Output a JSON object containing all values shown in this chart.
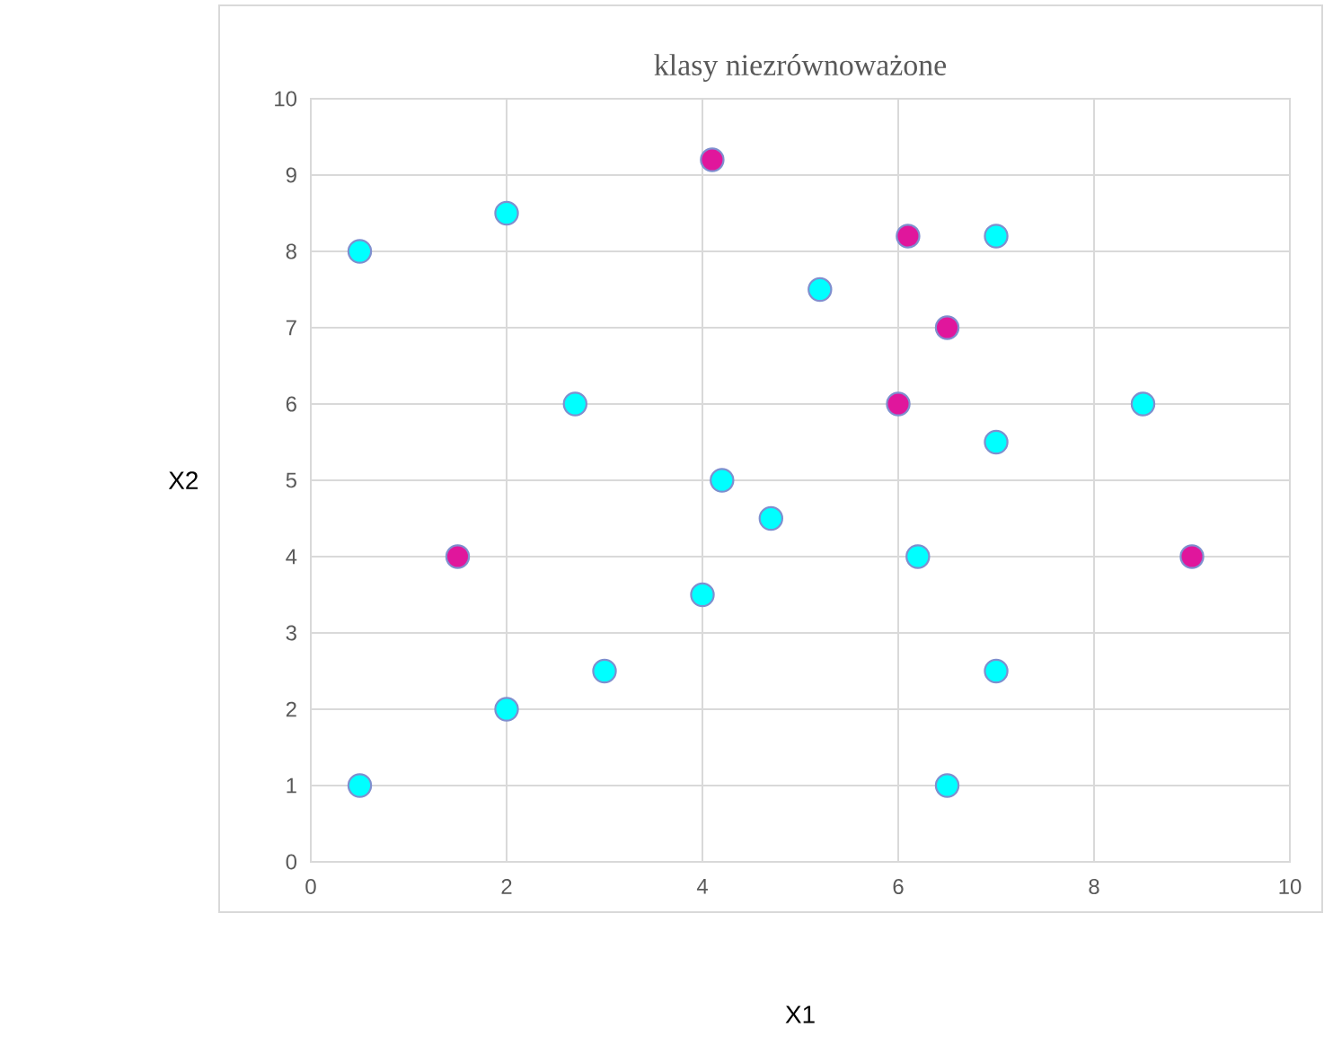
{
  "chart_data": {
    "type": "scatter",
    "title": "klasy niezrównoważone",
    "xlabel": "X1",
    "ylabel": "X2",
    "xlim": [
      0,
      10
    ],
    "ylim": [
      0,
      10
    ],
    "xticks": [
      0,
      2,
      4,
      6,
      8,
      10
    ],
    "yticks": [
      0,
      1,
      2,
      3,
      4,
      5,
      6,
      7,
      8,
      9,
      10
    ],
    "grid": true,
    "marker": "circle",
    "series": [
      {
        "color": "#00ffff",
        "x": [
          0.5,
          2,
          2.7,
          0.5,
          2,
          3,
          4,
          4.2,
          4.7,
          5.2,
          7,
          7,
          8.5,
          6.2,
          7,
          6.5
        ],
        "values": [
          8,
          8.5,
          6,
          1,
          2,
          2.5,
          3.5,
          5,
          4.5,
          7.5,
          8.2,
          5.5,
          6,
          4,
          2.5,
          1
        ]
      },
      {
        "color": "#e0169c",
        "x": [
          4.1,
          1.5,
          6.1,
          6.5,
          6,
          9
        ],
        "values": [
          9.2,
          4,
          8.2,
          7,
          6,
          4
        ]
      }
    ]
  }
}
